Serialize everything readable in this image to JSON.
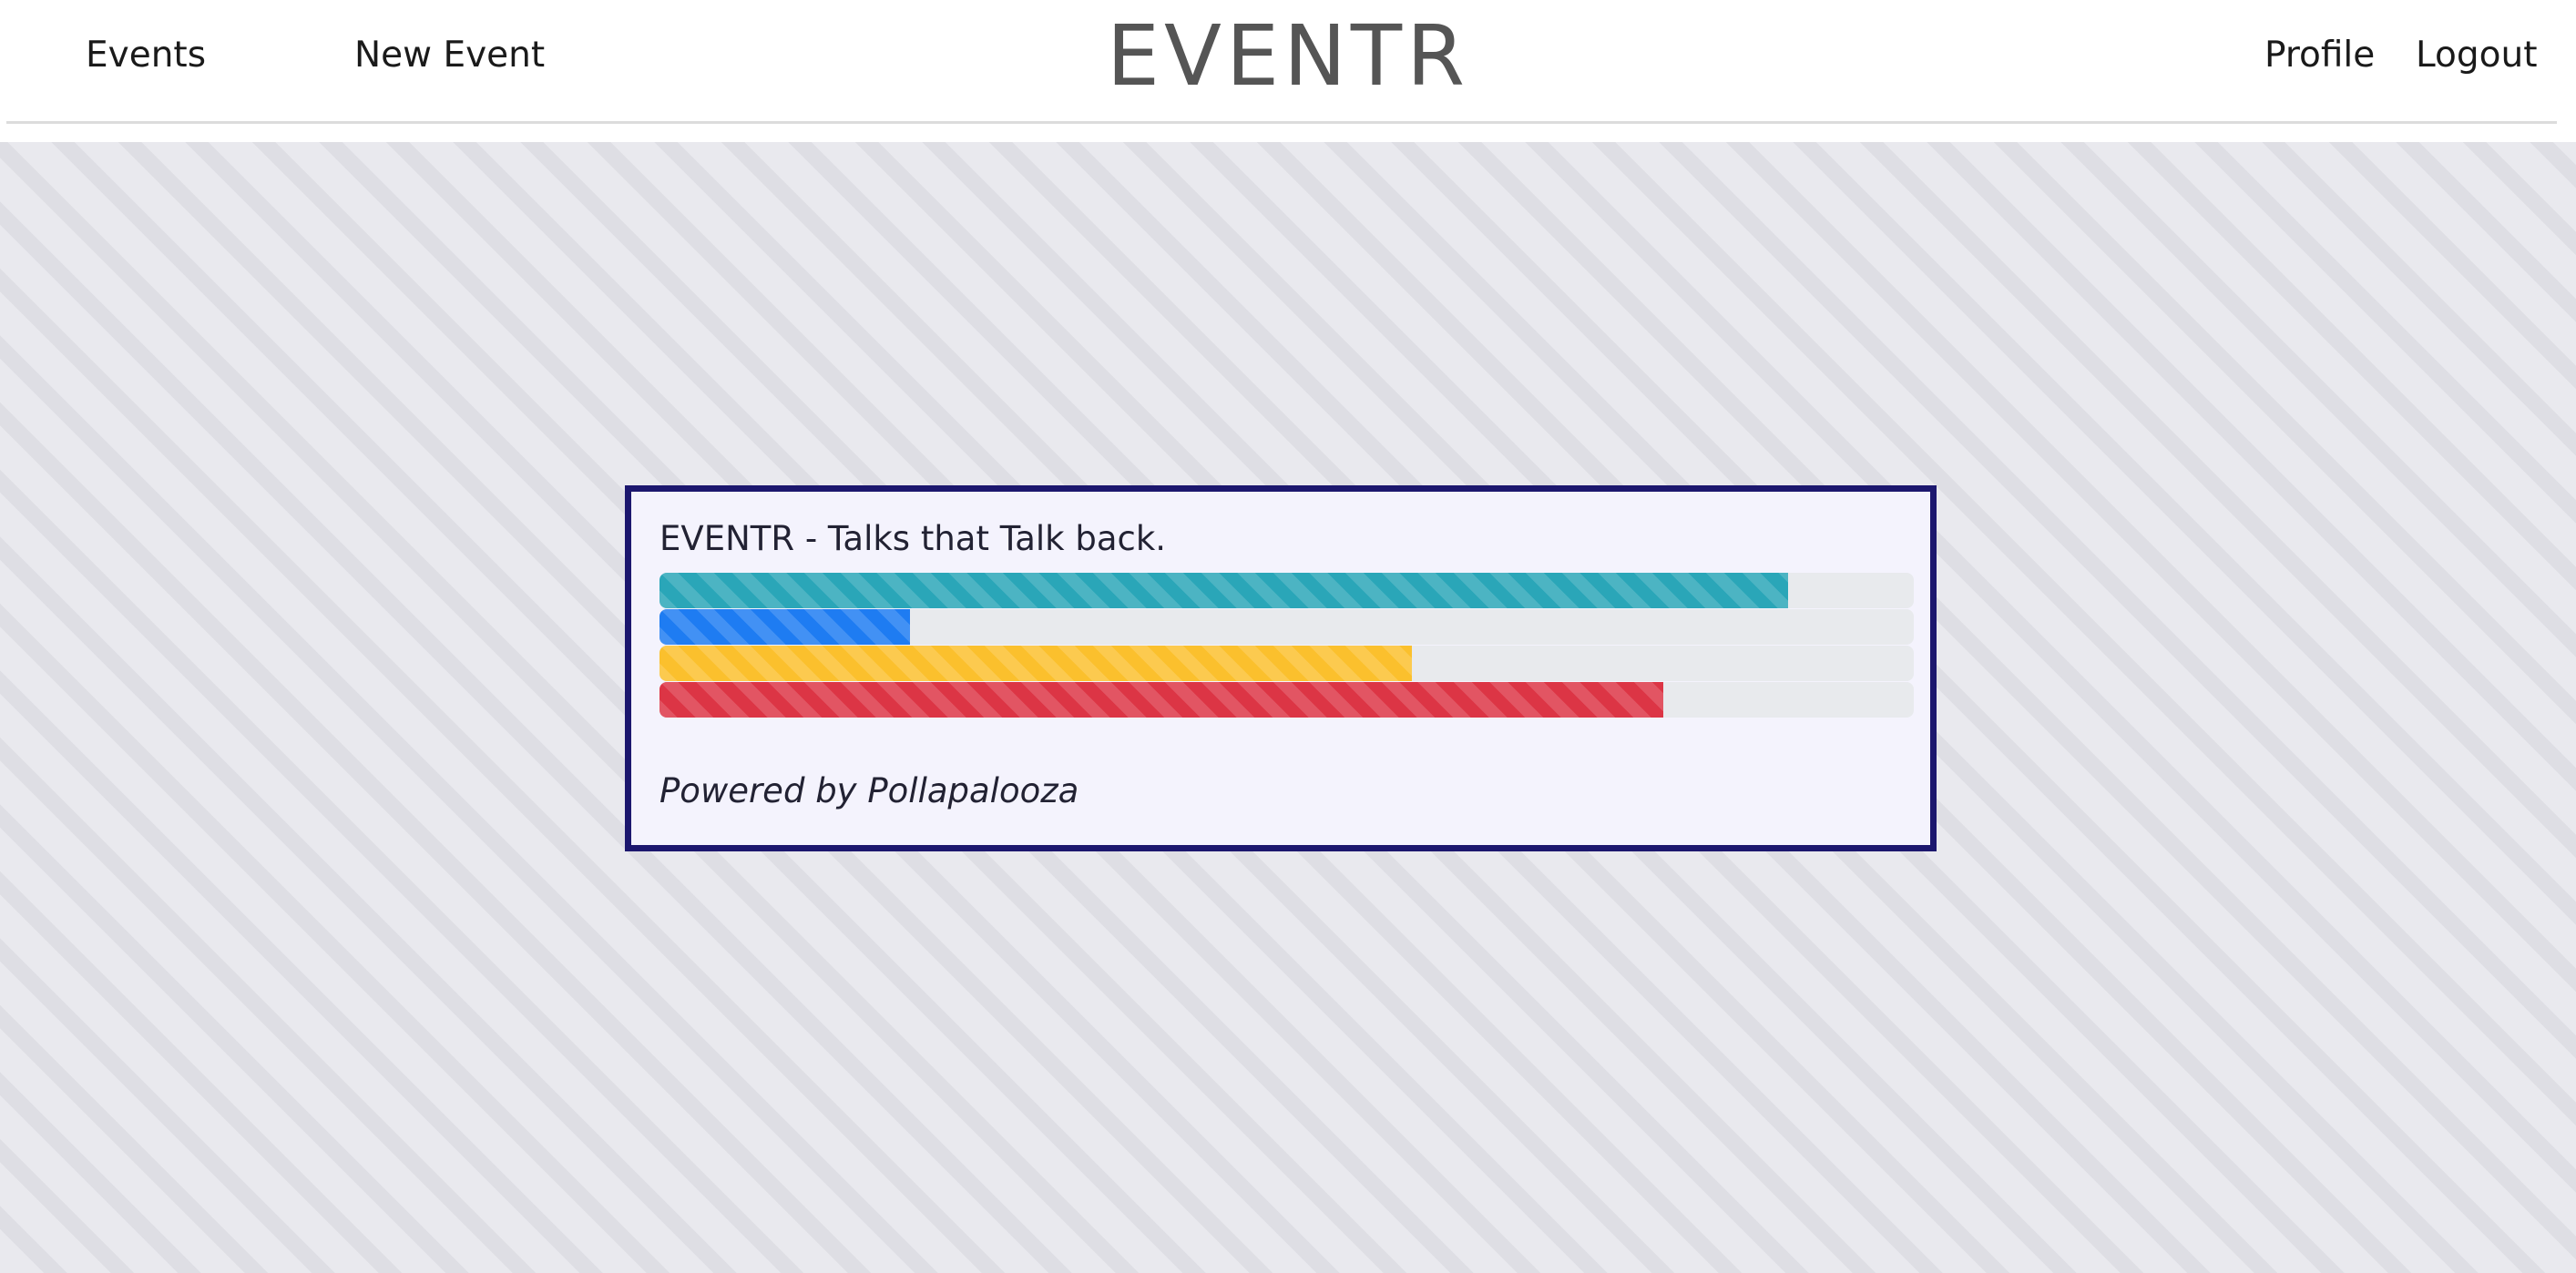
{
  "nav": {
    "events_label": "Events",
    "new_event_label": "New Event",
    "brand": "EVENTR",
    "profile_label": "Profile",
    "logout_label": "Logout"
  },
  "poll": {
    "title": "EVENTR - Talks that Talk back.",
    "footer": "Powered by Pollapalooza",
    "bars": [
      {
        "fraction": 0.9,
        "color": "#2aa6b8"
      },
      {
        "fraction": 0.2,
        "color": "#1e7cf2"
      },
      {
        "fraction": 0.6,
        "color": "#fbc02d"
      },
      {
        "fraction": 0.8,
        "color": "#dc3545"
      }
    ]
  },
  "colors": {
    "card_border": "#1c176e",
    "card_background": "#f4f3fd",
    "brand_text": "#555555"
  }
}
